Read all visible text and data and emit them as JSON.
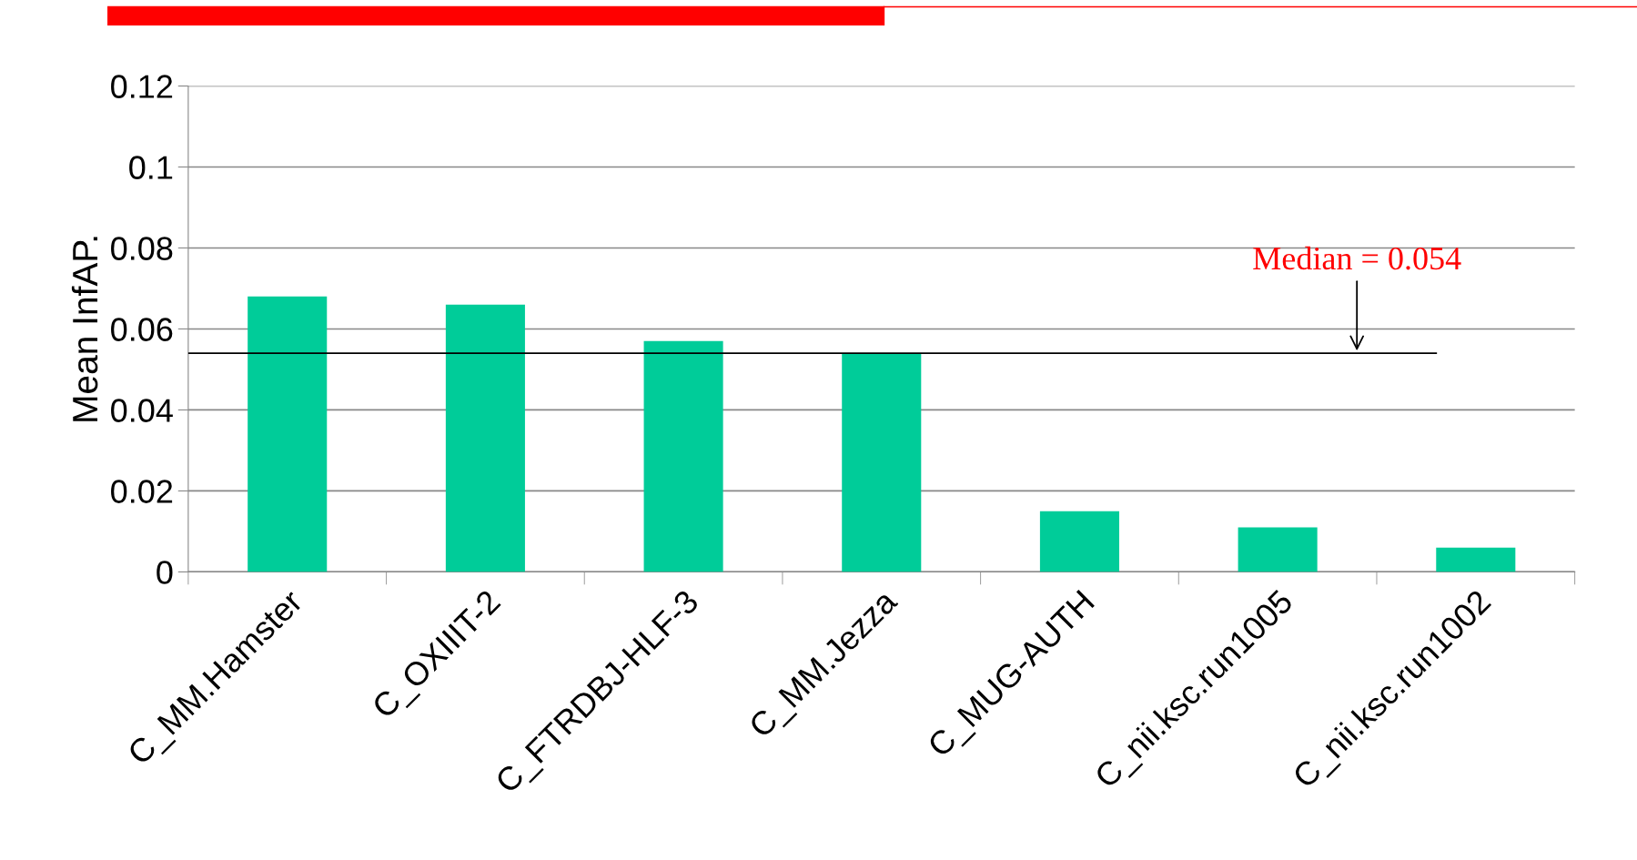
{
  "chart_data": {
    "type": "bar",
    "ylabel": "Mean InfAP.",
    "categories": [
      "C_MM.Hamster",
      "C_OXIIIT-2",
      "C_FTRDBJ-HLF-3",
      "C_MM.Jezza",
      "C_MUG-AUTH",
      "C_nii.ksc.run1005",
      "C_nii.ksc.run1002"
    ],
    "values": [
      0.068,
      0.066,
      0.057,
      0.054,
      0.015,
      0.011,
      0.006
    ],
    "color": "#00cc99",
    "ylim": [
      0,
      0.12
    ],
    "yticks": [
      0,
      0.02,
      0.04,
      0.06,
      0.08,
      0.1,
      0.12
    ],
    "grid": "y",
    "ref_lines": [
      {
        "axis": "y",
        "value": 0.054,
        "label": "Median = 0.054",
        "color": "#000000"
      }
    ]
  }
}
